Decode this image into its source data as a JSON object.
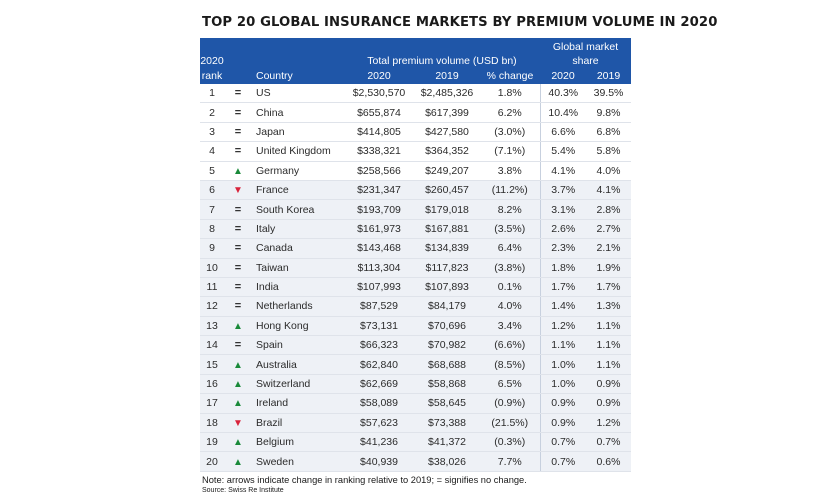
{
  "title": "TOP 20 GLOBAL INSURANCE MARKETS BY PREMIUM VOLUME IN 2020",
  "colors": {
    "header_bg": "#1f56a8",
    "up": "#1a8a3a",
    "down": "#d9233b",
    "alt_row": "#eef1f6"
  },
  "header": {
    "rank_top": "2020",
    "rank_bottom": "rank",
    "country": "Country",
    "group_premium": "Total premium volume (USD bn)",
    "group_share": "Global market share",
    "prem_2020": "2020",
    "prem_2019": "2019",
    "pct_change": "% change",
    "share_2020": "2020",
    "share_2019": "2019"
  },
  "rows": [
    {
      "rank": "1",
      "move": "=",
      "movement": "same",
      "country": "US",
      "p2020": "$2,530,570",
      "p2019": "$2,485,326",
      "change": "1.8%",
      "s2020": "40.3%",
      "s2019": "39.5%"
    },
    {
      "rank": "2",
      "move": "=",
      "movement": "same",
      "country": "China",
      "p2020": "$655,874",
      "p2019": "$617,399",
      "change": "6.2%",
      "s2020": "10.4%",
      "s2019": "9.8%"
    },
    {
      "rank": "3",
      "move": "=",
      "movement": "same",
      "country": "Japan",
      "p2020": "$414,805",
      "p2019": "$427,580",
      "change": "(3.0%)",
      "s2020": "6.6%",
      "s2019": "6.8%"
    },
    {
      "rank": "4",
      "move": "=",
      "movement": "same",
      "country": "United Kingdom",
      "p2020": "$338,321",
      "p2019": "$364,352",
      "change": "(7.1%)",
      "s2020": "5.4%",
      "s2019": "5.8%"
    },
    {
      "rank": "5",
      "move": "▲",
      "movement": "up",
      "country": "Germany",
      "p2020": "$258,566",
      "p2019": "$249,207",
      "change": "3.8%",
      "s2020": "4.1%",
      "s2019": "4.0%"
    },
    {
      "rank": "6",
      "move": "▼",
      "movement": "down",
      "country": "France",
      "p2020": "$231,347",
      "p2019": "$260,457",
      "change": "(11.2%)",
      "s2020": "3.7%",
      "s2019": "4.1%"
    },
    {
      "rank": "7",
      "move": "=",
      "movement": "same",
      "country": "South Korea",
      "p2020": "$193,709",
      "p2019": "$179,018",
      "change": "8.2%",
      "s2020": "3.1%",
      "s2019": "2.8%"
    },
    {
      "rank": "8",
      "move": "=",
      "movement": "same",
      "country": "Italy",
      "p2020": "$161,973",
      "p2019": "$167,881",
      "change": "(3.5%)",
      "s2020": "2.6%",
      "s2019": "2.7%"
    },
    {
      "rank": "9",
      "move": "=",
      "movement": "same",
      "country": "Canada",
      "p2020": "$143,468",
      "p2019": "$134,839",
      "change": "6.4%",
      "s2020": "2.3%",
      "s2019": "2.1%"
    },
    {
      "rank": "10",
      "move": "=",
      "movement": "same",
      "country": "Taiwan",
      "p2020": "$113,304",
      "p2019": "$117,823",
      "change": "(3.8%)",
      "s2020": "1.8%",
      "s2019": "1.9%"
    },
    {
      "rank": "11",
      "move": "=",
      "movement": "same",
      "country": "India",
      "p2020": "$107,993",
      "p2019": "$107,893",
      "change": "0.1%",
      "s2020": "1.7%",
      "s2019": "1.7%"
    },
    {
      "rank": "12",
      "move": "=",
      "movement": "same",
      "country": "Netherlands",
      "p2020": "$87,529",
      "p2019": "$84,179",
      "change": "4.0%",
      "s2020": "1.4%",
      "s2019": "1.3%"
    },
    {
      "rank": "13",
      "move": "▲",
      "movement": "up",
      "country": "Hong Kong",
      "p2020": "$73,131",
      "p2019": "$70,696",
      "change": "3.4%",
      "s2020": "1.2%",
      "s2019": "1.1%"
    },
    {
      "rank": "14",
      "move": "=",
      "movement": "same",
      "country": "Spain",
      "p2020": "$66,323",
      "p2019": "$70,982",
      "change": "(6.6%)",
      "s2020": "1.1%",
      "s2019": "1.1%"
    },
    {
      "rank": "15",
      "move": "▲",
      "movement": "up",
      "country": "Australia",
      "p2020": "$62,840",
      "p2019": "$68,688",
      "change": "(8.5%)",
      "s2020": "1.0%",
      "s2019": "1.1%"
    },
    {
      "rank": "16",
      "move": "▲",
      "movement": "up",
      "country": "Switzerland",
      "p2020": "$62,669",
      "p2019": "$58,868",
      "change": "6.5%",
      "s2020": "1.0%",
      "s2019": "0.9%"
    },
    {
      "rank": "17",
      "move": "▲",
      "movement": "up",
      "country": "Ireland",
      "p2020": "$58,089",
      "p2019": "$58,645",
      "change": "(0.9%)",
      "s2020": "0.9%",
      "s2019": "0.9%"
    },
    {
      "rank": "18",
      "move": "▼",
      "movement": "down",
      "country": "Brazil",
      "p2020": "$57,623",
      "p2019": "$73,388",
      "change": "(21.5%)",
      "s2020": "0.9%",
      "s2019": "1.2%"
    },
    {
      "rank": "19",
      "move": "▲",
      "movement": "up",
      "country": "Belgium",
      "p2020": "$41,236",
      "p2019": "$41,372",
      "change": "(0.3%)",
      "s2020": "0.7%",
      "s2019": "0.7%"
    },
    {
      "rank": "20",
      "move": "▲",
      "movement": "up",
      "country": "Sweden",
      "p2020": "$40,939",
      "p2019": "$38,026",
      "change": "7.7%",
      "s2020": "0.7%",
      "s2019": "0.6%"
    }
  ],
  "note": "Note: arrows indicate change in ranking relative to 2019; = signifies no change.",
  "source": "Source: Swiss Re Institute"
}
